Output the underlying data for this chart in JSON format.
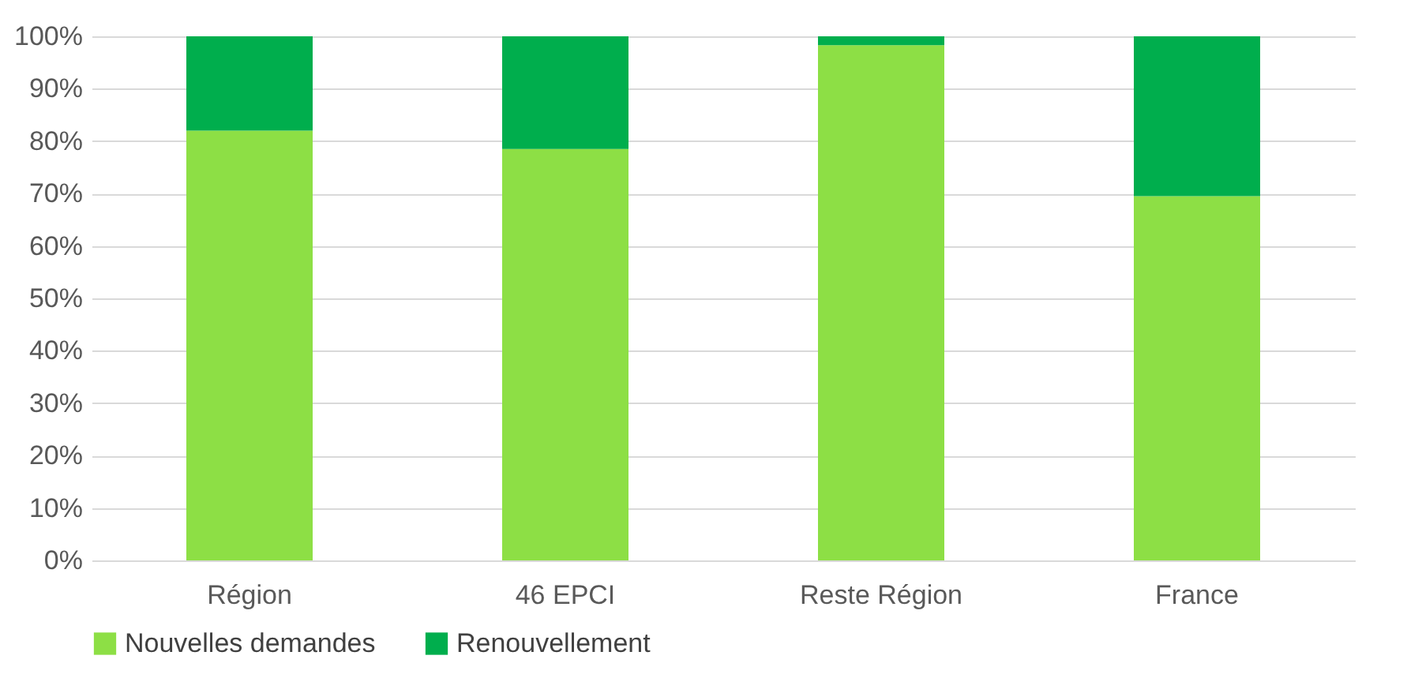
{
  "chart_data": {
    "type": "bar",
    "stacked": true,
    "categories": [
      "Région",
      "46 EPCI",
      "Reste Région",
      "France"
    ],
    "series": [
      {
        "name": "Nouvelles demandes",
        "color": "#8ddf45",
        "values": [
          82,
          78.5,
          98.3,
          69.5
        ]
      },
      {
        "name": "Renouvellement",
        "color": "#00ae4d",
        "values": [
          18,
          21.5,
          1.7,
          30.5
        ]
      }
    ],
    "ylim": [
      0,
      100
    ],
    "yticks": [
      {
        "value": 0,
        "label": "0%"
      },
      {
        "value": 10,
        "label": "10%"
      },
      {
        "value": 20,
        "label": "20%"
      },
      {
        "value": 30,
        "label": "30%"
      },
      {
        "value": 40,
        "label": "40%"
      },
      {
        "value": 50,
        "label": "50%"
      },
      {
        "value": 60,
        "label": "60%"
      },
      {
        "value": 70,
        "label": "70%"
      },
      {
        "value": 80,
        "label": "80%"
      },
      {
        "value": 90,
        "label": "90%"
      },
      {
        "value": 100,
        "label": "100%"
      }
    ],
    "grid": "y",
    "legend": "bottom"
  }
}
